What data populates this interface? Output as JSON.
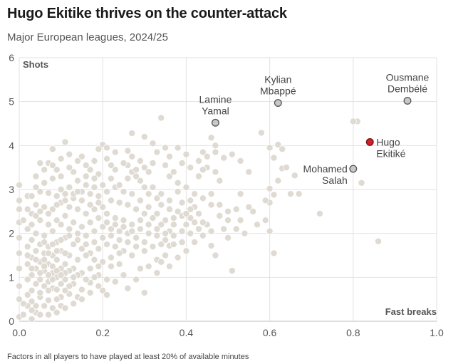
{
  "header": {
    "title": "Hugo Ekitike thrives on the counter-attack",
    "subtitle": "Major European leagues, 2024/25"
  },
  "footnote": "Factors in all players to have played at least 20% of available minutes",
  "colors": {
    "background_dot": "#ddd8d0",
    "background_dot_stroke": "#ffffff",
    "highlight_dot": "#c8c8c8",
    "highlight_stroke": "#555555",
    "featured_dot": "#d0202a",
    "featured_stroke": "#7a0f14",
    "grid": "#e2e2e2"
  },
  "chart_data": {
    "type": "scatter",
    "xlabel": "Fast breaks",
    "ylabel": "Shots",
    "xlim": [
      0,
      1.0
    ],
    "ylim": [
      0,
      6
    ],
    "x_ticks": [
      "0.0",
      "0.2",
      "0.4",
      "0.6",
      "0.8",
      "1.0"
    ],
    "y_ticks": [
      "0",
      "1",
      "2",
      "3",
      "4",
      "5",
      "6"
    ],
    "grid": true,
    "highlighted": [
      {
        "name_lines": [
          "Lamine",
          "Yamal"
        ],
        "x": 0.47,
        "y": 4.52,
        "label_pos": "above",
        "featured": false
      },
      {
        "name_lines": [
          "Kylian",
          "Mbappé"
        ],
        "x": 0.62,
        "y": 4.97,
        "label_pos": "above",
        "featured": false
      },
      {
        "name_lines": [
          "Ousmane",
          "Dembélé"
        ],
        "x": 0.93,
        "y": 5.02,
        "label_pos": "above",
        "featured": false
      },
      {
        "name_lines": [
          "Hugo",
          "Ekitiké"
        ],
        "x": 0.84,
        "y": 4.08,
        "label_pos": "right",
        "featured": true
      },
      {
        "name_lines": [
          "Mohamed",
          "Salah"
        ],
        "x": 0.8,
        "y": 3.47,
        "label_pos": "left",
        "featured": false
      }
    ],
    "others": [
      [
        0.47,
        3.85
      ],
      [
        0.44,
        3.85
      ],
      [
        0.47,
        4.0
      ],
      [
        0.46,
        4.18
      ],
      [
        0.38,
        3.95
      ],
      [
        0.35,
        3.95
      ],
      [
        0.34,
        4.63
      ],
      [
        0.32,
        4.05
      ],
      [
        0.3,
        4.2
      ],
      [
        0.27,
        4.28
      ],
      [
        0.26,
        3.88
      ],
      [
        0.2,
        4.02
      ],
      [
        0.19,
        3.92
      ],
      [
        0.15,
        3.75
      ],
      [
        0.11,
        4.08
      ],
      [
        0.08,
        3.92
      ],
      [
        0.05,
        3.6
      ],
      [
        0.04,
        3.3
      ],
      [
        0.51,
        3.8
      ],
      [
        0.49,
        3.72
      ],
      [
        0.53,
        3.65
      ],
      [
        0.55,
        3.4
      ],
      [
        0.58,
        4.29
      ],
      [
        0.6,
        3.95
      ],
      [
        0.61,
        3.72
      ],
      [
        0.62,
        4.02
      ],
      [
        0.63,
        3.92
      ],
      [
        0.6,
        3.02
      ],
      [
        0.61,
        2.88
      ],
      [
        0.62,
        3.2
      ],
      [
        0.63,
        3.48
      ],
      [
        0.64,
        3.5
      ],
      [
        0.66,
        3.32
      ],
      [
        0.67,
        2.9
      ],
      [
        0.65,
        2.9
      ],
      [
        0.6,
        2.7
      ],
      [
        0.59,
        2.75
      ],
      [
        0.59,
        2.3
      ],
      [
        0.6,
        2.05
      ],
      [
        0.61,
        1.55
      ],
      [
        0.57,
        2.2
      ],
      [
        0.56,
        2.5
      ],
      [
        0.55,
        2.6
      ],
      [
        0.53,
        2.9
      ],
      [
        0.53,
        2.3
      ],
      [
        0.52,
        2.55
      ],
      [
        0.5,
        2.5
      ],
      [
        0.5,
        1.9
      ],
      [
        0.49,
        2.1
      ],
      [
        0.48,
        2.65
      ],
      [
        0.48,
        3.2
      ],
      [
        0.47,
        3.4
      ],
      [
        0.45,
        3.5
      ],
      [
        0.44,
        3.45
      ],
      [
        0.43,
        3.3
      ],
      [
        0.45,
        2.2
      ],
      [
        0.46,
        2.9
      ],
      [
        0.72,
        2.45
      ],
      [
        0.82,
        3.15
      ],
      [
        0.81,
        4.55
      ],
      [
        0.8,
        4.55
      ],
      [
        0.86,
        1.82
      ],
      [
        0.51,
        1.15
      ],
      [
        0.47,
        1.5
      ],
      [
        0.46,
        1.72
      ],
      [
        0.37,
        1.95
      ],
      [
        0.36,
        1.72
      ],
      [
        0.35,
        1.5
      ],
      [
        0.33,
        1.4
      ],
      [
        0.3,
        0.65
      ],
      [
        0.29,
        1.2
      ],
      [
        0.25,
        1.05
      ],
      [
        0.24,
        1.3
      ],
      [
        0.22,
        1.25
      ],
      [
        0.21,
        0.95
      ],
      [
        0.2,
        0.7
      ],
      [
        0.19,
        1.05
      ],
      [
        0.17,
        0.88
      ],
      [
        0.15,
        0.72
      ],
      [
        0.14,
        0.55
      ],
      [
        0.13,
        0.85
      ],
      [
        0.12,
        0.62
      ],
      [
        0.1,
        0.55
      ],
      [
        0.09,
        0.5
      ],
      [
        0.07,
        0.48
      ],
      [
        0.05,
        0.55
      ],
      [
        0.04,
        0.35
      ],
      [
        0.03,
        0.45
      ],
      [
        0.02,
        0.35
      ],
      [
        0.01,
        0.4
      ],
      [
        0.0,
        0.5
      ],
      [
        0.0,
        0.8
      ],
      [
        0.0,
        1.2
      ],
      [
        0.0,
        1.55
      ],
      [
        0.0,
        1.9
      ],
      [
        0.0,
        2.25
      ],
      [
        0.0,
        2.55
      ],
      [
        0.0,
        2.75
      ],
      [
        0.0,
        3.1
      ],
      [
        0.03,
        0.05
      ],
      [
        0.0,
        0.1
      ],
      [
        0.38,
        2.95
      ],
      [
        0.39,
        2.7
      ],
      [
        0.41,
        2.75
      ],
      [
        0.42,
        2.6
      ],
      [
        0.43,
        2.45
      ],
      [
        0.41,
        2.35
      ],
      [
        0.4,
        2.2
      ],
      [
        0.38,
        2.5
      ],
      [
        0.36,
        2.55
      ],
      [
        0.34,
        2.65
      ],
      [
        0.33,
        2.8
      ],
      [
        0.31,
        2.9
      ],
      [
        0.3,
        3.05
      ],
      [
        0.29,
        3.2
      ],
      [
        0.28,
        3.3
      ],
      [
        0.27,
        3.4
      ],
      [
        0.26,
        3.55
      ],
      [
        0.25,
        3.6
      ],
      [
        0.23,
        3.45
      ],
      [
        0.22,
        3.55
      ],
      [
        0.21,
        3.7
      ],
      [
        0.19,
        3.35
      ],
      [
        0.18,
        3.25
      ],
      [
        0.17,
        3.45
      ],
      [
        0.16,
        3.3
      ],
      [
        0.14,
        3.2
      ],
      [
        0.13,
        3.4
      ],
      [
        0.12,
        3.5
      ],
      [
        0.1,
        3.3
      ],
      [
        0.09,
        3.45
      ],
      [
        0.08,
        3.25
      ],
      [
        0.07,
        3.6
      ],
      [
        0.06,
        3.15
      ],
      [
        0.05,
        2.95
      ],
      [
        0.07,
        2.92
      ],
      [
        0.09,
        2.85
      ],
      [
        0.11,
        2.9
      ],
      [
        0.13,
        2.8
      ],
      [
        0.15,
        2.95
      ],
      [
        0.17,
        2.9
      ],
      [
        0.19,
        2.85
      ],
      [
        0.21,
        2.95
      ],
      [
        0.23,
        3.05
      ],
      [
        0.25,
        2.95
      ],
      [
        0.27,
        2.9
      ],
      [
        0.29,
        2.75
      ],
      [
        0.31,
        2.6
      ],
      [
        0.33,
        2.45
      ],
      [
        0.35,
        2.3
      ],
      [
        0.37,
        2.2
      ],
      [
        0.39,
        2.05
      ],
      [
        0.41,
        2.0
      ],
      [
        0.43,
        2.1
      ],
      [
        0.44,
        2.25
      ],
      [
        0.36,
        2.05
      ],
      [
        0.34,
        2.2
      ],
      [
        0.32,
        2.35
      ],
      [
        0.3,
        2.45
      ],
      [
        0.28,
        2.55
      ],
      [
        0.26,
        2.65
      ],
      [
        0.24,
        2.7
      ],
      [
        0.22,
        2.75
      ],
      [
        0.2,
        2.6
      ],
      [
        0.18,
        2.55
      ],
      [
        0.16,
        2.45
      ],
      [
        0.14,
        2.55
      ],
      [
        0.12,
        2.6
      ],
      [
        0.1,
        2.7
      ],
      [
        0.08,
        2.55
      ],
      [
        0.06,
        2.6
      ],
      [
        0.04,
        2.65
      ],
      [
        0.03,
        2.45
      ],
      [
        0.05,
        2.3
      ],
      [
        0.07,
        2.2
      ],
      [
        0.09,
        2.3
      ],
      [
        0.11,
        2.4
      ],
      [
        0.13,
        2.25
      ],
      [
        0.15,
        2.15
      ],
      [
        0.17,
        2.25
      ],
      [
        0.19,
        2.35
      ],
      [
        0.21,
        2.45
      ],
      [
        0.23,
        2.35
      ],
      [
        0.25,
        2.3
      ],
      [
        0.27,
        2.2
      ],
      [
        0.29,
        2.1
      ],
      [
        0.31,
        2.0
      ],
      [
        0.33,
        1.95
      ],
      [
        0.35,
        1.85
      ],
      [
        0.37,
        1.75
      ],
      [
        0.39,
        1.8
      ],
      [
        0.3,
        1.8
      ],
      [
        0.28,
        1.9
      ],
      [
        0.26,
        2.0
      ],
      [
        0.24,
        2.05
      ],
      [
        0.22,
        2.1
      ],
      [
        0.2,
        2.15
      ],
      [
        0.18,
        2.05
      ],
      [
        0.16,
        1.95
      ],
      [
        0.14,
        2.0
      ],
      [
        0.12,
        2.1
      ],
      [
        0.1,
        2.2
      ],
      [
        0.08,
        2.05
      ],
      [
        0.06,
        1.95
      ],
      [
        0.04,
        2.0
      ],
      [
        0.03,
        1.85
      ],
      [
        0.05,
        1.75
      ],
      [
        0.07,
        1.7
      ],
      [
        0.09,
        1.8
      ],
      [
        0.11,
        1.9
      ],
      [
        0.13,
        1.75
      ],
      [
        0.15,
        1.65
      ],
      [
        0.17,
        1.55
      ],
      [
        0.19,
        1.65
      ],
      [
        0.21,
        1.75
      ],
      [
        0.23,
        1.7
      ],
      [
        0.25,
        1.6
      ],
      [
        0.27,
        1.5
      ],
      [
        0.24,
        1.55
      ],
      [
        0.22,
        1.45
      ],
      [
        0.2,
        1.35
      ],
      [
        0.18,
        1.4
      ],
      [
        0.16,
        1.5
      ],
      [
        0.14,
        1.4
      ],
      [
        0.12,
        1.5
      ],
      [
        0.1,
        1.6
      ],
      [
        0.08,
        1.5
      ],
      [
        0.06,
        1.55
      ],
      [
        0.04,
        1.6
      ],
      [
        0.03,
        1.45
      ],
      [
        0.05,
        1.35
      ],
      [
        0.07,
        1.3
      ],
      [
        0.09,
        1.4
      ],
      [
        0.11,
        1.3
      ],
      [
        0.13,
        1.2
      ],
      [
        0.15,
        1.1
      ],
      [
        0.17,
        1.2
      ],
      [
        0.19,
        1.25
      ],
      [
        0.18,
        1.0
      ],
      [
        0.16,
        0.95
      ],
      [
        0.14,
        1.05
      ],
      [
        0.12,
        1.15
      ],
      [
        0.1,
        1.2
      ],
      [
        0.08,
        1.1
      ],
      [
        0.06,
        1.15
      ],
      [
        0.04,
        1.2
      ],
      [
        0.03,
        1.05
      ],
      [
        0.05,
        0.95
      ],
      [
        0.07,
        0.9
      ],
      [
        0.09,
        1.0
      ],
      [
        0.11,
        0.95
      ],
      [
        0.13,
        1.0
      ],
      [
        0.12,
        0.8
      ],
      [
        0.1,
        0.85
      ],
      [
        0.08,
        0.75
      ],
      [
        0.06,
        0.8
      ],
      [
        0.04,
        0.85
      ],
      [
        0.03,
        0.7
      ],
      [
        0.05,
        0.65
      ],
      [
        0.07,
        0.7
      ],
      [
        0.09,
        0.72
      ],
      [
        0.11,
        0.7
      ],
      [
        0.06,
        0.35
      ],
      [
        0.04,
        0.2
      ],
      [
        0.05,
        0.15
      ],
      [
        0.08,
        0.3
      ],
      [
        0.1,
        0.35
      ],
      [
        0.02,
        0.95
      ],
      [
        0.02,
        1.3
      ],
      [
        0.02,
        1.7
      ],
      [
        0.02,
        2.1
      ],
      [
        0.01,
        2.3
      ],
      [
        0.06,
        1.4
      ],
      [
        0.08,
        1.25
      ],
      [
        0.07,
        1.05
      ],
      [
        0.05,
        1.1
      ],
      [
        0.09,
        1.15
      ],
      [
        0.11,
        1.1
      ],
      [
        0.06,
        1.25
      ],
      [
        0.08,
        0.95
      ],
      [
        0.1,
        1.05
      ],
      [
        0.07,
        1.55
      ],
      [
        0.09,
        1.6
      ],
      [
        0.11,
        1.55
      ],
      [
        0.06,
        1.8
      ],
      [
        0.08,
        1.75
      ],
      [
        0.1,
        1.85
      ],
      [
        0.12,
        1.95
      ],
      [
        0.14,
        1.85
      ],
      [
        0.16,
        1.75
      ],
      [
        0.18,
        1.8
      ],
      [
        0.2,
        1.9
      ],
      [
        0.22,
        1.95
      ],
      [
        0.24,
        1.85
      ],
      [
        0.26,
        1.8
      ],
      [
        0.28,
        1.7
      ],
      [
        0.3,
        1.6
      ],
      [
        0.32,
        1.7
      ],
      [
        0.34,
        1.75
      ],
      [
        0.21,
        2.25
      ],
      [
        0.23,
        2.2
      ],
      [
        0.25,
        2.15
      ],
      [
        0.27,
        2.05
      ],
      [
        0.29,
        2.3
      ],
      [
        0.31,
        2.2
      ],
      [
        0.33,
        2.1
      ],
      [
        0.35,
        2.0
      ],
      [
        0.37,
        2.35
      ],
      [
        0.39,
        2.4
      ],
      [
        0.41,
        2.55
      ],
      [
        0.19,
        2.7
      ],
      [
        0.17,
        2.65
      ],
      [
        0.15,
        2.75
      ],
      [
        0.13,
        2.9
      ],
      [
        0.11,
        2.75
      ],
      [
        0.09,
        2.65
      ],
      [
        0.07,
        2.45
      ],
      [
        0.05,
        2.5
      ],
      [
        0.03,
        2.2
      ],
      [
        0.04,
        1.4
      ],
      [
        0.03,
        1.2
      ],
      [
        0.02,
        0.6
      ],
      [
        0.03,
        0.25
      ],
      [
        0.01,
        0.15
      ],
      [
        0.02,
        2.55
      ],
      [
        0.02,
        2.85
      ],
      [
        0.24,
        3.1
      ],
      [
        0.26,
        3.25
      ],
      [
        0.28,
        3.45
      ],
      [
        0.3,
        3.5
      ],
      [
        0.32,
        3.6
      ],
      [
        0.22,
        3.25
      ],
      [
        0.2,
        3.1
      ],
      [
        0.18,
        3.05
      ],
      [
        0.16,
        3.1
      ],
      [
        0.14,
        2.95
      ],
      [
        0.12,
        3.05
      ],
      [
        0.1,
        3.0
      ],
      [
        0.36,
        3.3
      ],
      [
        0.38,
        3.15
      ],
      [
        0.4,
        3.05
      ],
      [
        0.42,
        2.9
      ],
      [
        0.44,
        2.8
      ],
      [
        0.46,
        2.65
      ],
      [
        0.48,
        2.4
      ],
      [
        0.5,
        2.3
      ],
      [
        0.52,
        2.1
      ],
      [
        0.54,
        2.0
      ],
      [
        0.42,
        2.25
      ],
      [
        0.4,
        2.45
      ],
      [
        0.36,
        2.75
      ],
      [
        0.34,
        2.9
      ],
      [
        0.32,
        3.05
      ],
      [
        0.15,
        0.5
      ],
      [
        0.13,
        0.4
      ],
      [
        0.11,
        0.3
      ],
      [
        0.09,
        0.2
      ],
      [
        0.07,
        0.15
      ],
      [
        0.17,
        0.65
      ],
      [
        0.19,
        0.8
      ],
      [
        0.21,
        0.6
      ],
      [
        0.23,
        0.9
      ],
      [
        0.26,
        0.75
      ],
      [
        0.28,
        0.95
      ],
      [
        0.31,
        1.25
      ],
      [
        0.33,
        1.1
      ],
      [
        0.34,
        1.35
      ],
      [
        0.36,
        1.25
      ],
      [
        0.38,
        1.45
      ],
      [
        0.4,
        1.6
      ],
      [
        0.42,
        1.8
      ],
      [
        0.44,
        1.95
      ],
      [
        0.46,
        2.05
      ],
      [
        0.35,
        3.55
      ],
      [
        0.37,
        3.4
      ],
      [
        0.39,
        3.6
      ],
      [
        0.41,
        3.5
      ],
      [
        0.43,
        3.65
      ],
      [
        0.45,
        3.75
      ],
      [
        0.4,
        3.8
      ],
      [
        0.36,
        3.75
      ],
      [
        0.33,
        3.85
      ],
      [
        0.31,
        3.4
      ],
      [
        0.29,
        3.65
      ],
      [
        0.27,
        3.75
      ],
      [
        0.23,
        3.85
      ],
      [
        0.21,
        3.95
      ],
      [
        0.18,
        3.65
      ],
      [
        0.16,
        3.55
      ],
      [
        0.14,
        3.65
      ],
      [
        0.12,
        3.8
      ],
      [
        0.1,
        3.7
      ],
      [
        0.08,
        3.55
      ],
      [
        0.06,
        3.45
      ],
      [
        0.04,
        3.05
      ],
      [
        0.03,
        2.85
      ],
      [
        0.04,
        2.4
      ],
      [
        0.02,
        1.5
      ]
    ]
  }
}
